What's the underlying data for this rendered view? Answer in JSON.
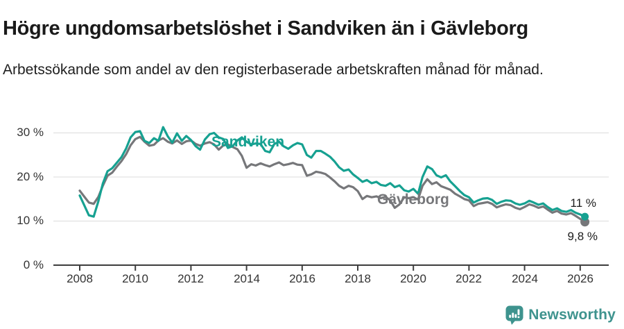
{
  "chart_data": {
    "type": "line",
    "title": "Högre ungdomsarbetslöshet i Sandviken än i Gävleborg",
    "subtitle": "Arbetssökande som andel av den registerbaserade arbetskraften månad för månad.",
    "x_unit": "decimal_year",
    "grid": "horizontal",
    "ylim": [
      0,
      33
    ],
    "xlim": [
      2007.2,
      2027.2
    ],
    "x": [
      2008.0,
      2008.17,
      2008.33,
      2008.5,
      2008.67,
      2008.83,
      2009.0,
      2009.17,
      2009.33,
      2009.5,
      2009.67,
      2009.83,
      2010.0,
      2010.17,
      2010.33,
      2010.5,
      2010.67,
      2010.83,
      2011.0,
      2011.17,
      2011.33,
      2011.5,
      2011.67,
      2011.83,
      2012.0,
      2012.17,
      2012.33,
      2012.5,
      2012.67,
      2012.83,
      2013.0,
      2013.17,
      2013.33,
      2013.5,
      2013.67,
      2013.83,
      2014.0,
      2014.17,
      2014.33,
      2014.5,
      2014.67,
      2014.83,
      2015.0,
      2015.17,
      2015.33,
      2015.5,
      2015.67,
      2015.83,
      2016.0,
      2016.17,
      2016.33,
      2016.5,
      2016.67,
      2016.83,
      2017.0,
      2017.17,
      2017.33,
      2017.5,
      2017.67,
      2017.83,
      2018.0,
      2018.17,
      2018.33,
      2018.5,
      2018.67,
      2018.83,
      2019.0,
      2019.17,
      2019.33,
      2019.5,
      2019.67,
      2019.83,
      2020.0,
      2020.17,
      2020.33,
      2020.5,
      2020.67,
      2020.83,
      2021.0,
      2021.17,
      2021.33,
      2021.5,
      2021.67,
      2021.83,
      2022.0,
      2022.17,
      2022.33,
      2022.5,
      2022.67,
      2022.83,
      2023.0,
      2023.17,
      2023.33,
      2023.5,
      2023.67,
      2023.83,
      2024.0,
      2024.17,
      2024.33,
      2024.5,
      2024.67,
      2024.83,
      2025.0,
      2025.17,
      2025.33,
      2025.5,
      2025.67,
      2025.83,
      2026.0,
      2026.17
    ],
    "series": [
      {
        "id": "sandviken",
        "name": "Sandviken",
        "color": "#16A191",
        "values": [
          15.8,
          13.5,
          11.3,
          11.0,
          14.5,
          18.5,
          21.3,
          22.0,
          23.2,
          24.5,
          26.5,
          29.0,
          30.2,
          30.4,
          28.2,
          27.7,
          28.8,
          28.2,
          31.3,
          29.2,
          27.8,
          29.9,
          28.2,
          29.3,
          28.4,
          27.0,
          26.2,
          28.5,
          29.7,
          30.0,
          29.0,
          28.6,
          26.6,
          27.0,
          28.3,
          29.0,
          28.0,
          27.4,
          27.6,
          27.5,
          25.9,
          25.6,
          27.5,
          28.0,
          27.0,
          26.4,
          27.2,
          27.7,
          27.4,
          25.0,
          24.4,
          25.9,
          25.9,
          25.3,
          24.6,
          23.5,
          22.2,
          21.4,
          21.7,
          20.6,
          19.8,
          18.9,
          19.3,
          18.6,
          18.9,
          18.2,
          18.0,
          18.6,
          17.7,
          18.1,
          17.0,
          16.7,
          17.3,
          16.2,
          20.0,
          22.4,
          21.8,
          20.4,
          19.9,
          20.4,
          19.0,
          17.9,
          16.8,
          15.9,
          15.4,
          14.2,
          14.7,
          15.1,
          15.2,
          14.8,
          13.9,
          14.4,
          14.7,
          14.6,
          14.0,
          13.7,
          14.0,
          14.6,
          14.2,
          13.7,
          14.0,
          13.2,
          12.5,
          12.9,
          12.3,
          12.1,
          12.5,
          11.9,
          11.5,
          11.0
        ]
      },
      {
        "id": "gavleborg",
        "name": "Gävleborg",
        "color": "#76777A",
        "values": [
          16.9,
          15.5,
          14.2,
          13.9,
          15.5,
          18.0,
          20.3,
          21.0,
          22.3,
          23.6,
          25.2,
          27.2,
          28.6,
          29.1,
          28.0,
          27.1,
          27.3,
          28.3,
          28.8,
          28.0,
          27.6,
          28.3,
          27.5,
          28.1,
          28.3,
          27.5,
          27.1,
          27.6,
          27.9,
          27.4,
          26.2,
          27.2,
          27.4,
          26.8,
          26.3,
          24.8,
          22.1,
          22.9,
          22.6,
          23.1,
          22.7,
          22.4,
          22.9,
          23.3,
          22.7,
          22.9,
          23.2,
          22.8,
          22.7,
          20.3,
          20.6,
          21.2,
          21.0,
          20.7,
          19.9,
          19.0,
          18.0,
          17.4,
          18.0,
          17.7,
          16.8,
          15.0,
          15.7,
          15.4,
          15.6,
          15.2,
          15.5,
          14.7,
          13.0,
          13.8,
          15.4,
          15.2,
          15.4,
          14.9,
          18.0,
          19.5,
          18.4,
          18.8,
          17.9,
          17.5,
          17.1,
          16.2,
          15.6,
          15.0,
          14.7,
          13.4,
          13.9,
          14.1,
          14.3,
          13.9,
          13.1,
          13.5,
          13.8,
          13.6,
          13.0,
          12.7,
          13.2,
          13.8,
          13.5,
          13.0,
          13.3,
          12.6,
          11.9,
          12.3,
          11.7,
          11.5,
          11.8,
          11.2,
          10.5,
          9.8
        ]
      }
    ],
    "yticks": [
      {
        "value": 0,
        "label": "0 %"
      },
      {
        "value": 10,
        "label": "10 %"
      },
      {
        "value": 20,
        "label": "20 %"
      },
      {
        "value": 30,
        "label": "30 %"
      }
    ],
    "xticks": [
      {
        "value": 2008,
        "label": "2008"
      },
      {
        "value": 2010,
        "label": "2010"
      },
      {
        "value": 2012,
        "label": "2012"
      },
      {
        "value": 2014,
        "label": "2014"
      },
      {
        "value": 2016,
        "label": "2016"
      },
      {
        "value": 2018,
        "label": "2018"
      },
      {
        "value": 2020,
        "label": "2020"
      },
      {
        "value": 2022,
        "label": "2022"
      },
      {
        "value": 2024,
        "label": "2024"
      },
      {
        "value": 2026,
        "label": "2026"
      }
    ],
    "end_labels": [
      {
        "series": "Sandviken",
        "label": "11 %"
      },
      {
        "series": "Gävleborg",
        "label": "9,8 %"
      }
    ]
  },
  "footer": {
    "brand": "Newsworthy",
    "brand_color": "#3E938E",
    "logo_icon": "bar-chart-speech-bubble-icon"
  }
}
